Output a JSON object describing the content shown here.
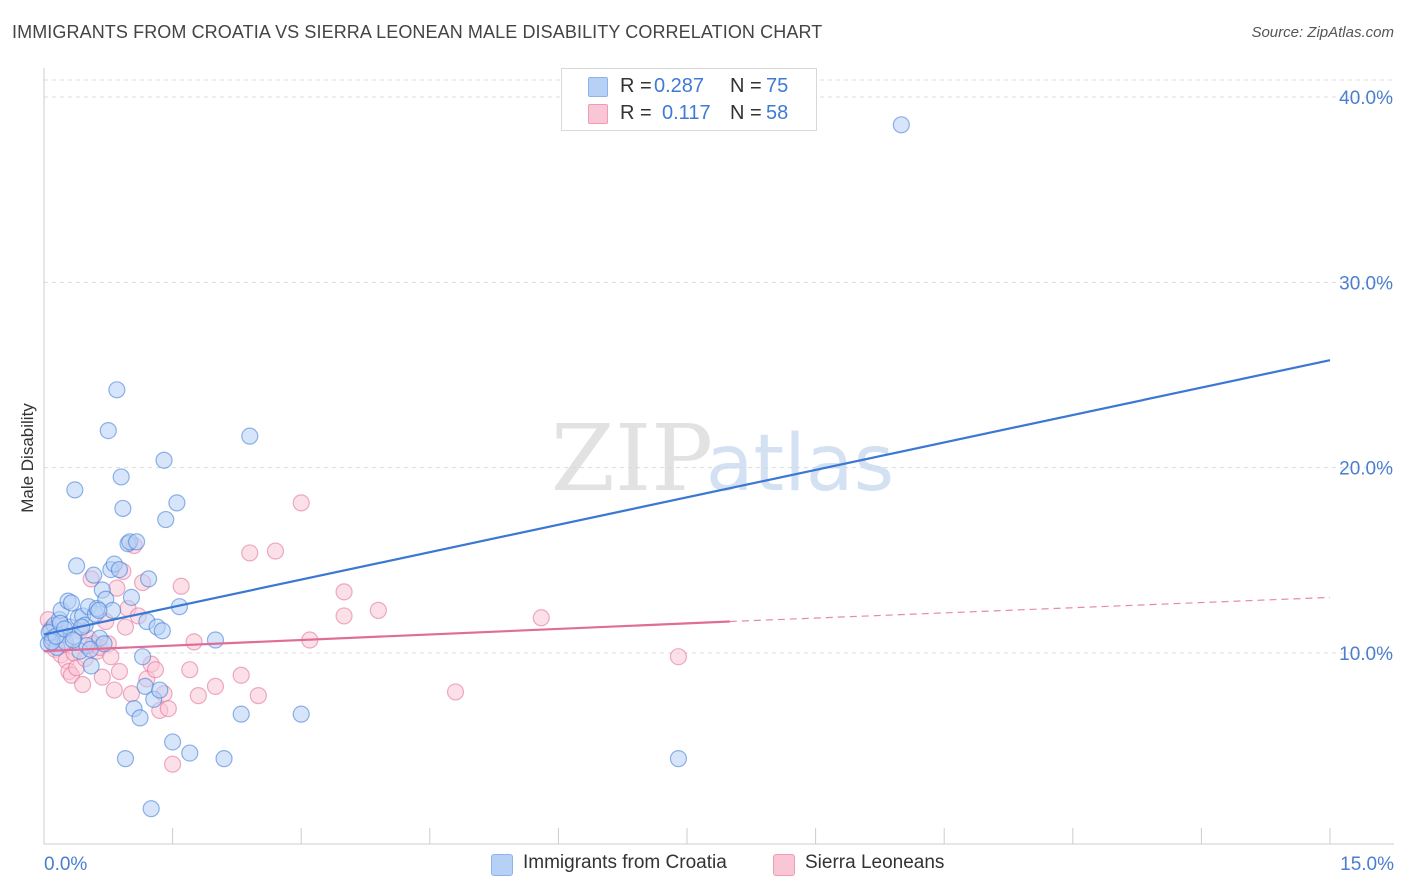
{
  "title": "IMMIGRANTS FROM CROATIA VS SIERRA LEONEAN MALE DISABILITY CORRELATION CHART",
  "source": "Source: ZipAtlas.com",
  "watermark": {
    "zip": "ZIP",
    "atlas": "atlas"
  },
  "legend": {
    "r_label": "R =",
    "n_label": "N =",
    "rows": [
      {
        "r": "0.287",
        "n": "75",
        "color": "#b7d0f5",
        "border": "#8fb3e8"
      },
      {
        "r": "0.117",
        "n": "58",
        "color": "#f9c6d6",
        "border": "#f09ab5"
      }
    ]
  },
  "chart_data": {
    "type": "scatter",
    "title": "IMMIGRANTS FROM CROATIA VS SIERRA LEONEAN MALE DISABILITY CORRELATION CHART",
    "xlabel": "",
    "ylabel": "Male Disability",
    "xlim": [
      0,
      15
    ],
    "ylim": [
      0,
      40
    ],
    "x_tick_labels": [
      "0.0%",
      "15.0%"
    ],
    "y_tick_values": [
      10,
      20,
      30,
      40
    ],
    "y_tick_labels": [
      "10.0%",
      "20.0%",
      "30.0%",
      "40.0%"
    ],
    "grid": true,
    "series": [
      {
        "name": "Immigrants from Croatia",
        "color": "#3a78d4",
        "fill": "#b7d0f5",
        "R": 0.287,
        "N": 75,
        "trend": {
          "x0": 0,
          "y0": 11.0,
          "x1": 15,
          "y1": 25.8
        },
        "points": [
          [
            0.05,
            10.5
          ],
          [
            0.08,
            11.2
          ],
          [
            0.1,
            10.8
          ],
          [
            0.12,
            11.5
          ],
          [
            0.15,
            10.3
          ],
          [
            0.18,
            11.8
          ],
          [
            0.2,
            12.3
          ],
          [
            0.22,
            11.0
          ],
          [
            0.25,
            10.6
          ],
          [
            0.28,
            12.8
          ],
          [
            0.3,
            11.4
          ],
          [
            0.32,
            12.7
          ],
          [
            0.35,
            10.9
          ],
          [
            0.38,
            14.7
          ],
          [
            0.4,
            11.9
          ],
          [
            0.42,
            10.1
          ],
          [
            0.45,
            12.0
          ],
          [
            0.48,
            11.5
          ],
          [
            0.5,
            10.4
          ],
          [
            0.52,
            12.5
          ],
          [
            0.55,
            9.3
          ],
          [
            0.58,
            14.2
          ],
          [
            0.6,
            12.1
          ],
          [
            0.62,
            12.4
          ],
          [
            0.65,
            10.8
          ],
          [
            0.68,
            13.4
          ],
          [
            0.7,
            10.5
          ],
          [
            0.72,
            12.9
          ],
          [
            0.75,
            22.0
          ],
          [
            0.78,
            14.5
          ],
          [
            0.8,
            12.3
          ],
          [
            0.82,
            14.8
          ],
          [
            0.85,
            24.2
          ],
          [
            0.88,
            14.5
          ],
          [
            0.9,
            19.5
          ],
          [
            0.92,
            17.8
          ],
          [
            0.95,
            4.3
          ],
          [
            0.98,
            15.9
          ],
          [
            1.0,
            16.0
          ],
          [
            1.02,
            13.0
          ],
          [
            1.05,
            7.0
          ],
          [
            1.08,
            16.0
          ],
          [
            1.12,
            6.5
          ],
          [
            1.15,
            9.8
          ],
          [
            1.18,
            8.2
          ],
          [
            1.2,
            11.7
          ],
          [
            1.22,
            14.0
          ],
          [
            1.25,
            1.6
          ],
          [
            1.28,
            7.5
          ],
          [
            1.32,
            11.4
          ],
          [
            1.35,
            8.0
          ],
          [
            1.38,
            11.2
          ],
          [
            1.4,
            20.4
          ],
          [
            1.42,
            17.2
          ],
          [
            1.5,
            5.2
          ],
          [
            1.55,
            18.1
          ],
          [
            1.58,
            12.5
          ],
          [
            1.7,
            4.6
          ],
          [
            2.0,
            10.7
          ],
          [
            2.1,
            4.3
          ],
          [
            2.3,
            6.7
          ],
          [
            2.4,
            21.7
          ],
          [
            3.0,
            6.7
          ],
          [
            7.4,
            4.3
          ],
          [
            10.0,
            38.5
          ],
          [
            0.06,
            11.1
          ],
          [
            0.09,
            10.6
          ],
          [
            0.14,
            10.9
          ],
          [
            0.19,
            11.6
          ],
          [
            0.24,
            11.3
          ],
          [
            0.34,
            10.7
          ],
          [
            0.44,
            11.4
          ],
          [
            0.54,
            10.2
          ],
          [
            0.36,
            18.8
          ],
          [
            0.64,
            12.3
          ]
        ]
      },
      {
        "name": "Sierra Leoneans",
        "color": "#e06c98",
        "fill": "#f9c6d6",
        "R": 0.117,
        "N": 58,
        "trend": {
          "x0": 0,
          "y0": 10.1,
          "x1": 8.0,
          "y1": 11.7
        },
        "trend_dashed": {
          "x0": 8.0,
          "y0": 11.7,
          "x1": 15,
          "y1": 13.0
        },
        "points": [
          [
            0.05,
            11.8
          ],
          [
            0.08,
            11.3
          ],
          [
            0.1,
            10.6
          ],
          [
            0.13,
            10.2
          ],
          [
            0.16,
            11.0
          ],
          [
            0.2,
            9.9
          ],
          [
            0.23,
            10.5
          ],
          [
            0.26,
            9.6
          ],
          [
            0.29,
            9.0
          ],
          [
            0.32,
            8.8
          ],
          [
            0.35,
            10.0
          ],
          [
            0.38,
            9.2
          ],
          [
            0.42,
            11.2
          ],
          [
            0.45,
            8.3
          ],
          [
            0.48,
            9.7
          ],
          [
            0.52,
            10.8
          ],
          [
            0.55,
            14.0
          ],
          [
            0.58,
            10.5
          ],
          [
            0.62,
            10.1
          ],
          [
            0.65,
            10.3
          ],
          [
            0.68,
            8.7
          ],
          [
            0.72,
            11.7
          ],
          [
            0.75,
            10.5
          ],
          [
            0.78,
            9.8
          ],
          [
            0.82,
            8.0
          ],
          [
            0.85,
            13.5
          ],
          [
            0.88,
            9.0
          ],
          [
            0.92,
            14.4
          ],
          [
            0.95,
            11.4
          ],
          [
            0.98,
            12.4
          ],
          [
            1.02,
            7.8
          ],
          [
            1.05,
            15.8
          ],
          [
            1.1,
            12.0
          ],
          [
            1.15,
            13.8
          ],
          [
            1.2,
            8.6
          ],
          [
            1.25,
            9.4
          ],
          [
            1.3,
            9.1
          ],
          [
            1.35,
            6.9
          ],
          [
            1.4,
            7.8
          ],
          [
            1.45,
            7.0
          ],
          [
            1.5,
            4.0
          ],
          [
            1.6,
            13.6
          ],
          [
            1.7,
            9.1
          ],
          [
            1.75,
            10.6
          ],
          [
            1.8,
            7.7
          ],
          [
            2.0,
            8.2
          ],
          [
            2.3,
            8.8
          ],
          [
            2.4,
            15.4
          ],
          [
            2.5,
            7.7
          ],
          [
            2.7,
            15.5
          ],
          [
            3.0,
            18.1
          ],
          [
            3.1,
            10.7
          ],
          [
            3.5,
            13.3
          ],
          [
            3.5,
            12.0
          ],
          [
            3.9,
            12.3
          ],
          [
            4.8,
            7.9
          ],
          [
            5.8,
            11.9
          ],
          [
            7.4,
            9.8
          ]
        ]
      }
    ]
  }
}
